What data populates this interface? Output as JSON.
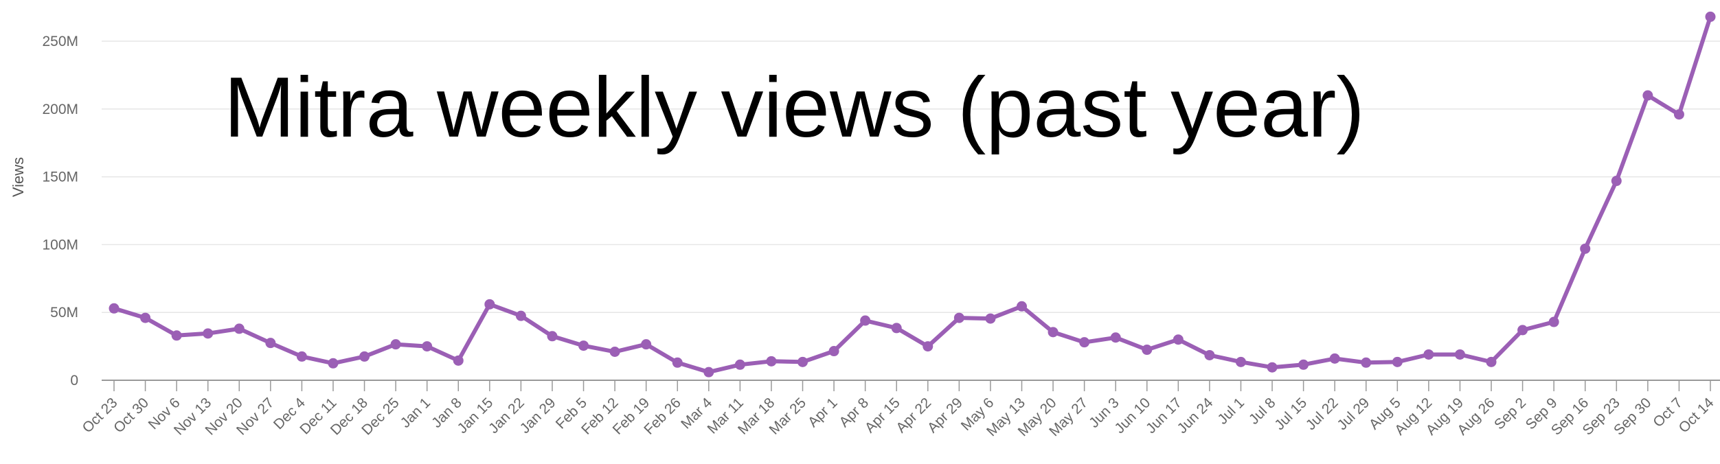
{
  "chart_data": {
    "type": "line",
    "title": "Mitra weekly views (past year)",
    "xlabel": "",
    "ylabel": "Views",
    "ylim": [
      0,
      270000000
    ],
    "yticks": [
      {
        "value": 0,
        "label": "0"
      },
      {
        "value": 50000000,
        "label": "50M"
      },
      {
        "value": 100000000,
        "label": "100M"
      },
      {
        "value": 150000000,
        "label": "150M"
      },
      {
        "value": 200000000,
        "label": "200M"
      },
      {
        "value": 250000000,
        "label": "250M"
      }
    ],
    "grid": true,
    "legend": "none",
    "colors": {
      "line": "#9b5fb5",
      "grid": "#e6e6e6",
      "axis": "#999999",
      "text": "#666666",
      "title": "#000000"
    },
    "categories": [
      "Oct 23",
      "Oct 30",
      "Nov 6",
      "Nov 13",
      "Nov 20",
      "Nov 27",
      "Dec 4",
      "Dec 11",
      "Dec 18",
      "Dec 25",
      "Jan 1",
      "Jan 8",
      "Jan 15",
      "Jan 22",
      "Jan 29",
      "Feb 5",
      "Feb 12",
      "Feb 19",
      "Feb 26",
      "Mar 4",
      "Mar 11",
      "Mar 18",
      "Mar 25",
      "Apr 1",
      "Apr 8",
      "Apr 15",
      "Apr 22",
      "Apr 29",
      "May 6",
      "May 13",
      "May 20",
      "May 27",
      "Jun 3",
      "Jun 10",
      "Jun 17",
      "Jun 24",
      "Jul 1",
      "Jul 8",
      "Jul 15",
      "Jul 22",
      "Jul 29",
      "Aug 5",
      "Aug 12",
      "Aug 19",
      "Aug 26",
      "Sep 2",
      "Sep 9",
      "Sep 16",
      "Sep 23",
      "Sep 30",
      "Oct 7",
      "Oct 14"
    ],
    "series": [
      {
        "values": [
          53000000,
          46000000,
          33000000,
          34500000,
          38000000,
          27500000,
          17500000,
          12500000,
          17500000,
          26500000,
          25000000,
          14500000,
          56000000,
          47500000,
          32500000,
          25500000,
          21000000,
          26500000,
          13000000,
          6000000,
          11500000,
          14000000,
          13500000,
          21500000,
          44000000,
          38500000,
          25000000,
          46000000,
          45500000,
          54500000,
          35500000,
          28000000,
          31500000,
          22500000,
          30000000,
          18500000,
          13500000,
          9500000,
          11500000,
          16000000,
          13000000,
          13500000,
          19000000,
          19000000,
          13500000,
          37000000,
          43000000,
          97000000,
          147000000,
          210000000,
          196000000,
          268000000
        ]
      }
    ]
  }
}
